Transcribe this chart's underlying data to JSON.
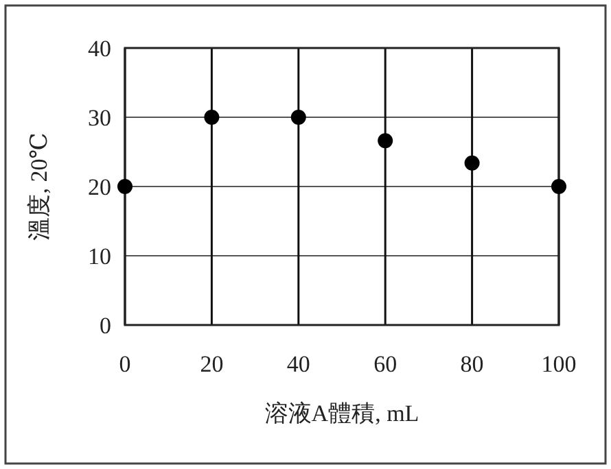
{
  "chart_data": {
    "type": "scatter",
    "xlabel": "溶液A體積, mL",
    "ylabel": "溫度, 20℃",
    "x": [
      0,
      20,
      40,
      60,
      80,
      100
    ],
    "series": [
      {
        "color": "#000000",
        "values": [
          20,
          30,
          30,
          26.6,
          23.4,
          20
        ]
      }
    ],
    "xlim": [
      0,
      100
    ],
    "xticks": [
      0,
      20,
      40,
      60,
      80,
      100
    ],
    "ylim": [
      0,
      40
    ],
    "yticks": [
      0,
      10,
      20,
      30,
      40
    ],
    "grid": true,
    "marker": "circle"
  }
}
